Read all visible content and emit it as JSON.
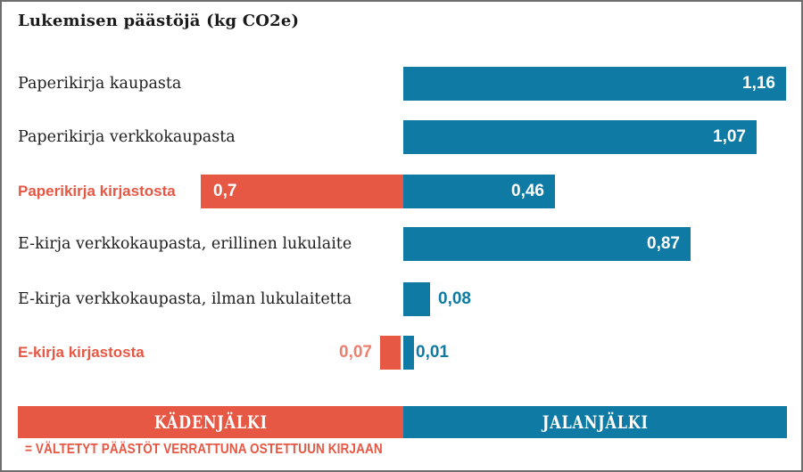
{
  "title": "Lukemisen päästöjä (kg CO2e)",
  "colors": {
    "footprint_blue": "#0f7aa3",
    "handprint_red": "#e65744",
    "handprint_value_text": "#ee7e6e",
    "label_dark": "#1e1e1e",
    "border_gray": "#6e6e6e"
  },
  "chart_data": {
    "type": "bar",
    "orientation": "horizontal",
    "title": "Lukemisen päästöjä (kg CO2e)",
    "unit": "kg CO2e",
    "legend_position": "bottom",
    "series": [
      {
        "name": "KÄDENJÄLKI",
        "role": "handprint",
        "color": "#e65744"
      },
      {
        "name": "JALANJÄLKI",
        "role": "footprint",
        "color": "#0f7aa3"
      }
    ],
    "rows": [
      {
        "label": "Paperikirja kaupasta",
        "emphasis": false,
        "footprint": 1.16,
        "footprint_label": "1,16",
        "handprint": null,
        "handprint_label": null
      },
      {
        "label": "Paperikirja verkkokaupasta",
        "emphasis": false,
        "footprint": 1.07,
        "footprint_label": "1,07",
        "handprint": null,
        "handprint_label": null
      },
      {
        "label": "Paperikirja kirjastosta",
        "emphasis": true,
        "footprint": 0.46,
        "footprint_label": "0,46",
        "handprint": 0.7,
        "handprint_label": "0,7"
      },
      {
        "label": "E-kirja verkkokaupasta, erillinen lukulaite",
        "emphasis": false,
        "footprint": 0.87,
        "footprint_label": "0,87",
        "handprint": null,
        "handprint_label": null
      },
      {
        "label": "E-kirja verkkokaupasta, ilman lukulaitetta",
        "emphasis": false,
        "footprint": 0.08,
        "footprint_label": "0,08",
        "handprint": null,
        "handprint_label": null
      },
      {
        "label": "E-kirja kirjastosta",
        "emphasis": true,
        "footprint": 0.01,
        "footprint_label": "0,01",
        "handprint": 0.07,
        "handprint_label": "0,07"
      }
    ]
  },
  "legend": {
    "handprint_label": "KÄDENJÄLKI",
    "footprint_label": "JALANJÄLKI"
  },
  "footnote": "= VÄLTETYT PÄÄSTÖT VERRATTUNA OSTETTUUN KIRJAAN"
}
